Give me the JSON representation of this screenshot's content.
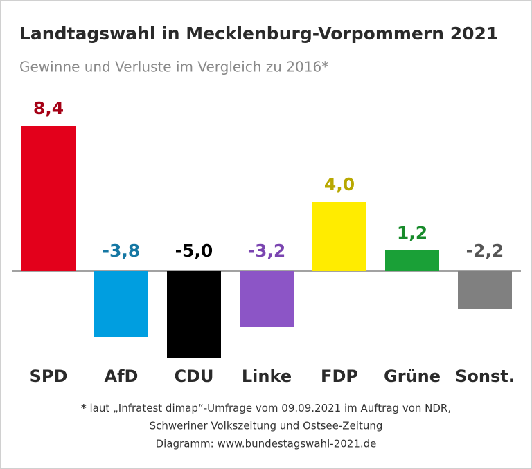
{
  "chart_data": {
    "type": "bar",
    "title": "Landtagswahl in Mecklenburg-Vorpommern 2021",
    "subtitle": "Gewinne und Verluste im Vergleich zu 2016*",
    "categories": [
      "SPD",
      "AfD",
      "CDU",
      "Linke",
      "FDP",
      "Grüne",
      "Sonst."
    ],
    "values": [
      8.4,
      -3.8,
      -5.0,
      -3.2,
      4.0,
      1.2,
      -2.2
    ],
    "value_labels": [
      "8,4",
      "-3,8",
      "-5,0",
      "-3,2",
      "4,0",
      "1,2",
      "-2,2"
    ],
    "colors": [
      "#e3001b",
      "#009ee0",
      "#000000",
      "#8c55c6",
      "#ffec00",
      "#1aa037",
      "#808080"
    ],
    "label_colors": [
      "#a50015",
      "#1577a3",
      "#000000",
      "#7a44b0",
      "#b8a800",
      "#178a2a",
      "#555555"
    ],
    "footnote_marker": "*",
    "footnote": [
      "laut „Infratest dimap“-Umfrage vom 09.09.2021 im Auftrag von NDR,",
      "Schweriner Volkszeitung und Ostsee-Zeitung",
      "Diagramm: www.bundestagswahl-2021.de"
    ]
  }
}
